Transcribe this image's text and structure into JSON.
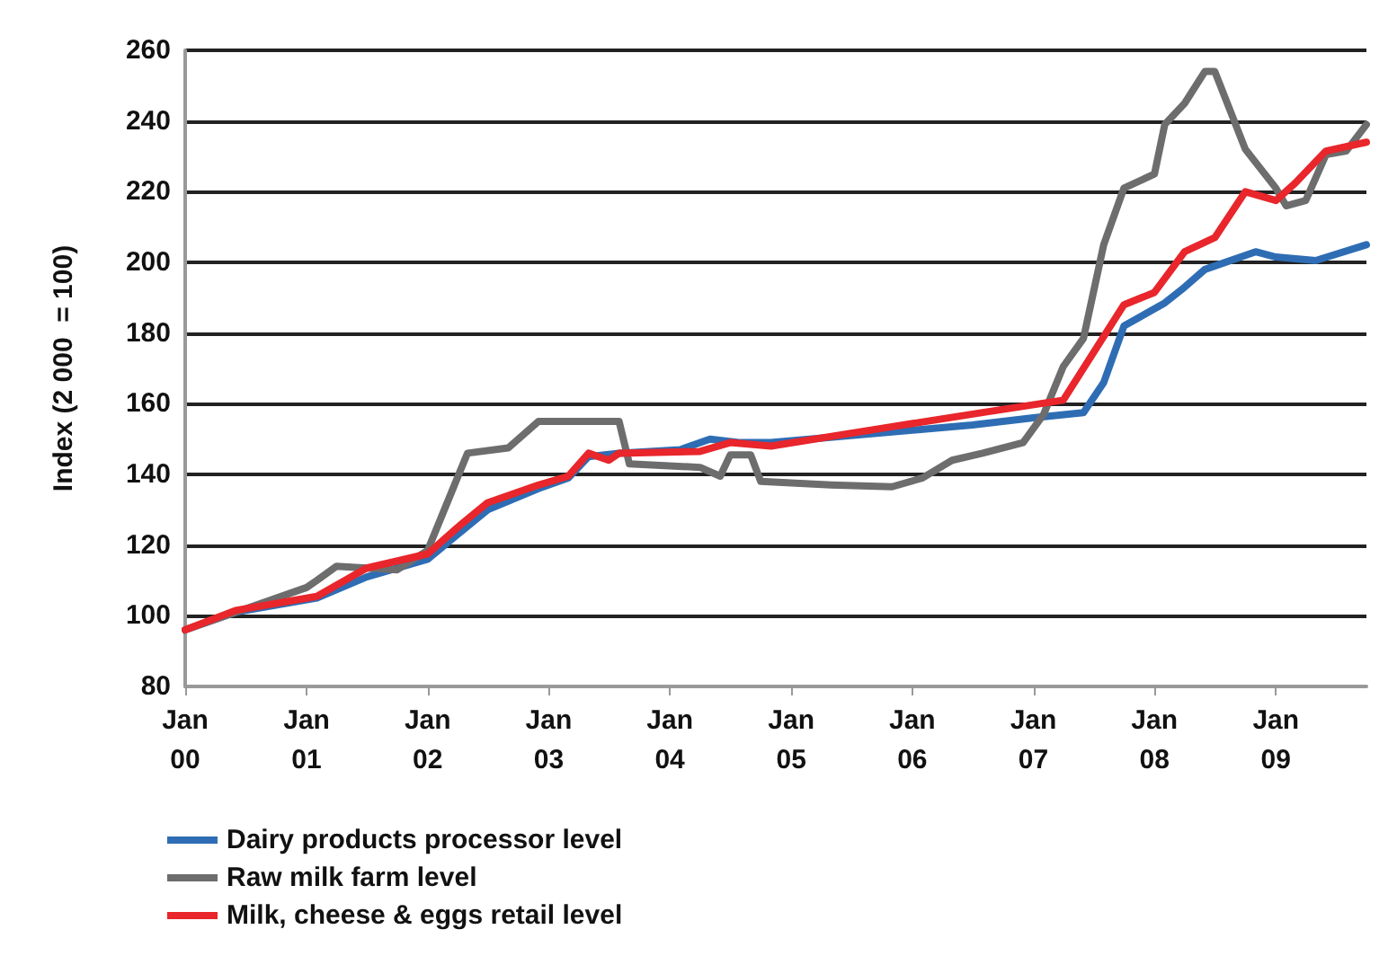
{
  "chart_data": {
    "type": "line",
    "ylabel": "Index (2 000  = 100)",
    "xlim": [
      "2000-01",
      "2009-10"
    ],
    "xticks": [
      {
        "value": "2000-01",
        "label": "Jan\n00"
      },
      {
        "value": "2001-01",
        "label": "Jan\n01"
      },
      {
        "value": "2002-01",
        "label": "Jan\n02"
      },
      {
        "value": "2003-01",
        "label": "Jan\n03"
      },
      {
        "value": "2004-01",
        "label": "Jan\n04"
      },
      {
        "value": "2005-01",
        "label": "Jan\n05"
      },
      {
        "value": "2006-01",
        "label": "Jan\n06"
      },
      {
        "value": "2007-01",
        "label": "Jan\n07"
      },
      {
        "value": "2008-01",
        "label": "Jan\n08"
      },
      {
        "value": "2009-01",
        "label": "Jan\n09"
      }
    ],
    "ylim": [
      80,
      260
    ],
    "yticks": [
      80,
      100,
      120,
      140,
      160,
      180,
      200,
      220,
      240,
      260
    ],
    "grid": "y",
    "legend": "bottom",
    "marker": "none",
    "line_style": "solid",
    "series": [
      {
        "name": "Dairy products processor level",
        "color": "#2e6db4",
        "x": [
          "2000-01",
          "2000-06",
          "2001-02",
          "2001-07",
          "2002-01",
          "2002-04",
          "2002-07",
          "2002-12",
          "2003-03",
          "2003-05",
          "2003-08",
          "2004-02",
          "2004-05",
          "2004-08",
          "2004-11",
          "2005-11",
          "2006-07",
          "2007-01",
          "2007-06",
          "2007-08",
          "2007-10",
          "2008-02",
          "2008-04",
          "2008-06",
          "2008-11",
          "2009-01",
          "2009-05",
          "2009-10"
        ],
        "values": [
          96,
          101,
          105,
          111,
          116,
          123,
          130,
          136,
          139,
          145,
          146,
          147,
          150,
          149,
          149,
          152,
          154,
          156,
          157.5,
          166,
          182,
          188.5,
          193,
          198,
          203,
          201.5,
          200.5,
          205
        ]
      },
      {
        "name": "Raw milk farm level",
        "color": "#6d6d6d",
        "x": [
          "2000-01",
          "2000-06",
          "2001-01",
          "2001-02",
          "2001-04",
          "2001-10",
          "2002-01",
          "2002-05",
          "2002-09",
          "2002-12",
          "2003-08",
          "2003-09",
          "2004-04",
          "2004-06",
          "2004-07",
          "2004-09",
          "2004-10",
          "2005-05",
          "2005-11",
          "2006-02",
          "2006-05",
          "2006-08",
          "2006-12",
          "2007-02",
          "2007-04",
          "2007-06",
          "2007-08",
          "2007-10",
          "2008-01",
          "2008-02",
          "2008-04",
          "2008-06",
          "2008-07",
          "2008-10",
          "2009-01",
          "2009-02",
          "2009-04",
          "2009-06",
          "2009-08",
          "2009-10"
        ],
        "values": [
          96,
          101,
          108,
          110,
          114,
          113,
          118.5,
          146,
          147.5,
          155,
          155,
          143,
          142,
          139.5,
          145.5,
          145.5,
          138,
          137,
          136.5,
          139,
          144,
          146,
          149,
          157,
          170.5,
          178.5,
          205,
          221,
          225,
          239,
          245,
          254,
          254,
          232,
          221,
          216,
          217.5,
          230.5,
          231.5,
          239
        ]
      },
      {
        "name": "Milk, cheese & eggs retail level",
        "color": "#e8262b",
        "x": [
          "2000-01",
          "2000-06",
          "2001-02",
          "2001-07",
          "2002-01",
          "2002-04",
          "2002-07",
          "2002-12",
          "2003-03",
          "2003-05",
          "2003-07",
          "2003-08",
          "2004-04",
          "2004-07",
          "2004-11",
          "2005-11",
          "2006-08",
          "2007-04",
          "2007-10",
          "2008-01",
          "2008-04",
          "2008-07",
          "2008-10",
          "2009-01",
          "2009-03",
          "2009-06",
          "2009-10"
        ],
        "values": [
          96,
          101.5,
          105.5,
          113.5,
          117.5,
          125,
          132,
          137,
          139.5,
          146,
          144,
          146,
          146.5,
          149,
          148,
          153.5,
          157.5,
          161,
          188,
          191.5,
          203,
          207,
          220,
          217.5,
          222.5,
          231.5,
          234
        ]
      }
    ]
  }
}
